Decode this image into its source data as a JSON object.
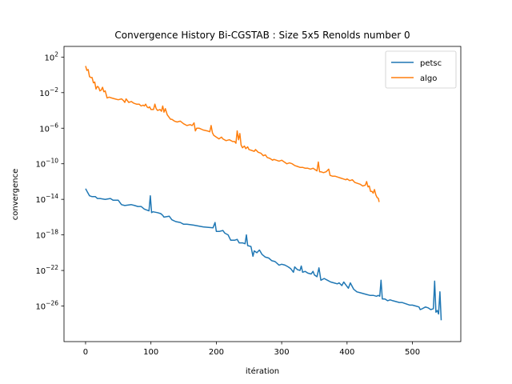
{
  "chart_data": {
    "type": "line",
    "title": "Convergence History Bi-CGSTAB : Size 5x5 Renolds number 0",
    "xlabel": "itération",
    "ylabel": "convergence",
    "xlim": [
      -33,
      574
    ],
    "ylim_log10": [
      -30,
      3.2
    ],
    "yscale": "log",
    "xticks": [
      0,
      100,
      200,
      300,
      400,
      500
    ],
    "xtick_labels": [
      "0",
      "100",
      "200",
      "300",
      "400",
      "500"
    ],
    "yticks_log10": [
      2,
      -2,
      -6,
      -10,
      -14,
      -18,
      -22,
      -26
    ],
    "ytick_labels": [
      {
        "base": "10",
        "exp": "2"
      },
      {
        "base": "10",
        "exp": "−2"
      },
      {
        "base": "10",
        "exp": "−6"
      },
      {
        "base": "10",
        "exp": "−10"
      },
      {
        "base": "10",
        "exp": "−14"
      },
      {
        "base": "10",
        "exp": "−18"
      },
      {
        "base": "10",
        "exp": "−22"
      },
      {
        "base": "10",
        "exp": "−26"
      }
    ],
    "legend_position": "top-right",
    "grid": false,
    "series": [
      {
        "name": "petsc",
        "color": "#1f77b4",
        "points": [
          [
            0,
            -12.8
          ],
          [
            3,
            -13.2
          ],
          [
            6,
            -13.6
          ],
          [
            10,
            -13.7
          ],
          [
            15,
            -13.7
          ],
          [
            18,
            -13.9
          ],
          [
            22,
            -13.9
          ],
          [
            30,
            -14.0
          ],
          [
            38,
            -13.9
          ],
          [
            42,
            -14.1
          ],
          [
            50,
            -14.1
          ],
          [
            55,
            -14.6
          ],
          [
            60,
            -14.7
          ],
          [
            70,
            -14.6
          ],
          [
            75,
            -14.7
          ],
          [
            80,
            -14.8
          ],
          [
            85,
            -14.8
          ],
          [
            90,
            -15.1
          ],
          [
            97,
            -15.3
          ],
          [
            99,
            -13.6
          ],
          [
            101,
            -15.5
          ],
          [
            103,
            -15.4
          ],
          [
            110,
            -15.5
          ],
          [
            115,
            -15.6
          ],
          [
            118,
            -15.8
          ],
          [
            120,
            -16.0
          ],
          [
            128,
            -15.9
          ],
          [
            132,
            -16.3
          ],
          [
            138,
            -16.5
          ],
          [
            145,
            -16.6
          ],
          [
            150,
            -16.8
          ],
          [
            155,
            -16.8
          ],
          [
            165,
            -16.9
          ],
          [
            180,
            -17.1
          ],
          [
            195,
            -17.2
          ],
          [
            198,
            -16.6
          ],
          [
            200,
            -17.6
          ],
          [
            205,
            -17.6
          ],
          [
            210,
            -17.5
          ],
          [
            213,
            -17.8
          ],
          [
            218,
            -18.0
          ],
          [
            222,
            -18.6
          ],
          [
            228,
            -18.6
          ],
          [
            232,
            -18.5
          ],
          [
            235,
            -18.9
          ],
          [
            240,
            -18.9
          ],
          [
            244,
            -19.0
          ],
          [
            246,
            -18.0
          ],
          [
            248,
            -19.2
          ],
          [
            253,
            -19.3
          ],
          [
            256,
            -20.4
          ],
          [
            258,
            -19.8
          ],
          [
            262,
            -20.0
          ],
          [
            266,
            -19.7
          ],
          [
            270,
            -20.2
          ],
          [
            275,
            -20.5
          ],
          [
            280,
            -20.6
          ],
          [
            285,
            -20.9
          ],
          [
            290,
            -21.0
          ],
          [
            296,
            -21.4
          ],
          [
            300,
            -21.3
          ],
          [
            305,
            -21.4
          ],
          [
            310,
            -21.6
          ],
          [
            314,
            -21.8
          ],
          [
            318,
            -22.2
          ],
          [
            320,
            -21.6
          ],
          [
            324,
            -21.9
          ],
          [
            328,
            -22.0
          ],
          [
            330,
            -21.5
          ],
          [
            332,
            -22.2
          ],
          [
            336,
            -22.1
          ],
          [
            340,
            -22.3
          ],
          [
            345,
            -22.4
          ],
          [
            348,
            -22.1
          ],
          [
            350,
            -22.5
          ],
          [
            354,
            -22.7
          ],
          [
            357,
            -21.7
          ],
          [
            360,
            -23.1
          ],
          [
            365,
            -22.9
          ],
          [
            370,
            -23.1
          ],
          [
            375,
            -23.3
          ],
          [
            380,
            -23.4
          ],
          [
            385,
            -23.5
          ],
          [
            388,
            -23.4
          ],
          [
            392,
            -23.7
          ],
          [
            395,
            -23.3
          ],
          [
            398,
            -23.6
          ],
          [
            402,
            -24.0
          ],
          [
            405,
            -23.4
          ],
          [
            410,
            -24.1
          ],
          [
            415,
            -24.4
          ],
          [
            420,
            -24.5
          ],
          [
            425,
            -24.6
          ],
          [
            430,
            -24.7
          ],
          [
            435,
            -24.8
          ],
          [
            440,
            -24.8
          ],
          [
            445,
            -24.9
          ],
          [
            448,
            -24.8
          ],
          [
            450,
            -24.9
          ],
          [
            452,
            -23.1
          ],
          [
            454,
            -25.2
          ],
          [
            458,
            -25.2
          ],
          [
            462,
            -25.4
          ],
          [
            466,
            -25.3
          ],
          [
            470,
            -25.4
          ],
          [
            475,
            -25.5
          ],
          [
            480,
            -25.6
          ],
          [
            484,
            -25.6
          ],
          [
            488,
            -25.7
          ],
          [
            492,
            -25.8
          ],
          [
            496,
            -25.9
          ],
          [
            500,
            -25.9
          ],
          [
            505,
            -26.0
          ],
          [
            510,
            -26.1
          ],
          [
            512,
            -26.4
          ],
          [
            515,
            -26.3
          ],
          [
            520,
            -26.1
          ],
          [
            524,
            -26.2
          ],
          [
            528,
            -26.4
          ],
          [
            532,
            -26.3
          ],
          [
            534,
            -23.2
          ],
          [
            536,
            -26.7
          ],
          [
            538,
            -26.5
          ],
          [
            540,
            -26.9
          ],
          [
            542,
            -24.4
          ],
          [
            544,
            -27.6
          ]
        ]
      },
      {
        "name": "algo",
        "color": "#ff7f0e",
        "points": [
          [
            0,
            1.0
          ],
          [
            2,
            0.5
          ],
          [
            4,
            0.6
          ],
          [
            6,
            -0.2
          ],
          [
            8,
            -0.3
          ],
          [
            10,
            -0.3
          ],
          [
            12,
            -0.9
          ],
          [
            14,
            -0.8
          ],
          [
            16,
            -1.6
          ],
          [
            18,
            -1.3
          ],
          [
            20,
            -1.4
          ],
          [
            22,
            -1.8
          ],
          [
            24,
            -1.7
          ],
          [
            26,
            -1.4
          ],
          [
            28,
            -1.9
          ],
          [
            30,
            -1.8
          ],
          [
            33,
            -2.6
          ],
          [
            36,
            -2.5
          ],
          [
            40,
            -2.6
          ],
          [
            45,
            -2.7
          ],
          [
            50,
            -2.8
          ],
          [
            55,
            -2.7
          ],
          [
            58,
            -2.9
          ],
          [
            60,
            -3.1
          ],
          [
            62,
            -2.7
          ],
          [
            66,
            -3.1
          ],
          [
            70,
            -3.0
          ],
          [
            74,
            -3.2
          ],
          [
            78,
            -3.3
          ],
          [
            82,
            -3.3
          ],
          [
            85,
            -3.5
          ],
          [
            88,
            -3.4
          ],
          [
            90,
            -3.5
          ],
          [
            92,
            -3.3
          ],
          [
            94,
            -3.6
          ],
          [
            96,
            -3.7
          ],
          [
            98,
            -3.6
          ],
          [
            100,
            -3.9
          ],
          [
            104,
            -3.9
          ],
          [
            106,
            -3.3
          ],
          [
            108,
            -3.8
          ],
          [
            110,
            -4.0
          ],
          [
            114,
            -3.9
          ],
          [
            116,
            -4.1
          ],
          [
            118,
            -3.5
          ],
          [
            120,
            -4.2
          ],
          [
            122,
            -3.8
          ],
          [
            125,
            -4.5
          ],
          [
            128,
            -4.8
          ],
          [
            130,
            -5.0
          ],
          [
            132,
            -5.0
          ],
          [
            136,
            -5.2
          ],
          [
            140,
            -5.3
          ],
          [
            145,
            -5.2
          ],
          [
            150,
            -5.5
          ],
          [
            155,
            -5.7
          ],
          [
            160,
            -5.6
          ],
          [
            163,
            -5.7
          ],
          [
            166,
            -5.4
          ],
          [
            168,
            -6.3
          ],
          [
            170,
            -6.0
          ],
          [
            174,
            -6.0
          ],
          [
            180,
            -6.2
          ],
          [
            186,
            -6.3
          ],
          [
            190,
            -6.4
          ],
          [
            192,
            -5.7
          ],
          [
            194,
            -6.5
          ],
          [
            196,
            -6.8
          ],
          [
            200,
            -7.0
          ],
          [
            204,
            -7.2
          ],
          [
            208,
            -7.0
          ],
          [
            210,
            -7.2
          ],
          [
            215,
            -7.4
          ],
          [
            220,
            -7.3
          ],
          [
            225,
            -7.5
          ],
          [
            228,
            -7.5
          ],
          [
            230,
            -7.7
          ],
          [
            232,
            -6.3
          ],
          [
            234,
            -7.3
          ],
          [
            236,
            -6.6
          ],
          [
            238,
            -7.9
          ],
          [
            240,
            -8.2
          ],
          [
            243,
            -8.0
          ],
          [
            245,
            -8.3
          ],
          [
            248,
            -8.1
          ],
          [
            250,
            -8.4
          ],
          [
            254,
            -8.5
          ],
          [
            258,
            -8.6
          ],
          [
            260,
            -8.4
          ],
          [
            264,
            -8.7
          ],
          [
            268,
            -8.8
          ],
          [
            272,
            -9.1
          ],
          [
            275,
            -9.0
          ],
          [
            278,
            -9.3
          ],
          [
            282,
            -9.4
          ],
          [
            286,
            -9.6
          ],
          [
            288,
            -9.5
          ],
          [
            292,
            -9.6
          ],
          [
            296,
            -9.7
          ],
          [
            300,
            -9.6
          ],
          [
            304,
            -9.8
          ],
          [
            308,
            -10.0
          ],
          [
            312,
            -9.9
          ],
          [
            316,
            -10.0
          ],
          [
            320,
            -10.2
          ],
          [
            324,
            -10.3
          ],
          [
            328,
            -10.4
          ],
          [
            332,
            -10.4
          ],
          [
            336,
            -10.5
          ],
          [
            340,
            -10.5
          ],
          [
            344,
            -10.6
          ],
          [
            348,
            -10.5
          ],
          [
            352,
            -10.7
          ],
          [
            354,
            -10.8
          ],
          [
            356,
            -9.8
          ],
          [
            358,
            -10.9
          ],
          [
            360,
            -10.9
          ],
          [
            364,
            -11.0
          ],
          [
            368,
            -10.9
          ],
          [
            372,
            -10.6
          ],
          [
            374,
            -11.3
          ],
          [
            378,
            -11.4
          ],
          [
            382,
            -11.4
          ],
          [
            386,
            -11.5
          ],
          [
            390,
            -11.6
          ],
          [
            394,
            -11.7
          ],
          [
            398,
            -11.8
          ],
          [
            400,
            -11.7
          ],
          [
            404,
            -11.9
          ],
          [
            408,
            -11.8
          ],
          [
            412,
            -12.1
          ],
          [
            416,
            -12.2
          ],
          [
            420,
            -12.3
          ],
          [
            424,
            -12.5
          ],
          [
            428,
            -12.4
          ],
          [
            430,
            -12.0
          ],
          [
            432,
            -12.6
          ],
          [
            434,
            -12.5
          ],
          [
            436,
            -13.1
          ],
          [
            438,
            -13.1
          ],
          [
            440,
            -13.3
          ],
          [
            442,
            -12.9
          ],
          [
            444,
            -13.5
          ],
          [
            446,
            -13.8
          ],
          [
            448,
            -13.9
          ],
          [
            449,
            -14.3
          ]
        ]
      }
    ]
  }
}
